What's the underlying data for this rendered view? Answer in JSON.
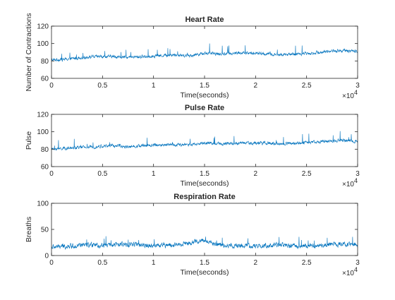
{
  "chart_data": [
    {
      "type": "line",
      "title": "Heart Rate",
      "xlabel": "Time(seconds)",
      "ylabel": "Number of Contractions",
      "xlim": [
        0,
        30000
      ],
      "ylim": [
        60,
        120
      ],
      "x_ticks": [
        "0",
        "0.5",
        "1",
        "1.5",
        "2",
        "2.5",
        "3"
      ],
      "y_ticks": [
        "60",
        "80",
        "100",
        "120"
      ],
      "x_multiplier": "10^4",
      "series": [
        {
          "color": "#0072BD",
          "x": [
            0,
            1500,
            3000,
            4500,
            6000,
            7500,
            9000,
            10500,
            12000,
            13500,
            15000,
            16500,
            18000,
            19500,
            21000,
            22500,
            24000,
            25500,
            27000,
            28500,
            30000
          ],
          "values": [
            81,
            82,
            84,
            85,
            85,
            84,
            85,
            86,
            87,
            86,
            89,
            88,
            89,
            89,
            88,
            87,
            88,
            89,
            91,
            92,
            91
          ]
        }
      ]
    },
    {
      "type": "line",
      "title": "Pulse Rate",
      "xlabel": "Time(seconds)",
      "ylabel": "Pulse",
      "xlim": [
        0,
        30000
      ],
      "ylim": [
        60,
        120
      ],
      "x_ticks": [
        "0",
        "0.5",
        "1",
        "1.5",
        "2",
        "2.5",
        "3"
      ],
      "y_ticks": [
        "60",
        "80",
        "100",
        "120"
      ],
      "x_multiplier": "10^4",
      "series": [
        {
          "color": "#0072BD",
          "x": [
            0,
            1500,
            3000,
            4500,
            6000,
            7500,
            9000,
            10500,
            12000,
            13500,
            15000,
            16500,
            18000,
            19500,
            21000,
            22500,
            24000,
            25500,
            27000,
            28500,
            30000
          ],
          "values": [
            80,
            81,
            82,
            83,
            84,
            83,
            84,
            85,
            85,
            85,
            87,
            86,
            87,
            87,
            87,
            86,
            87,
            88,
            89,
            90,
            89
          ]
        }
      ]
    },
    {
      "type": "line",
      "title": "Respiration Rate",
      "xlabel": "Time(seconds)",
      "ylabel": "Breaths",
      "xlim": [
        0,
        30000
      ],
      "ylim": [
        0,
        100
      ],
      "x_ticks": [
        "0",
        "0.5",
        "1",
        "1.5",
        "2",
        "2.5",
        "3"
      ],
      "y_ticks": [
        "0",
        "50",
        "100"
      ],
      "x_multiplier": "10^4",
      "series": [
        {
          "color": "#0072BD",
          "x": [
            0,
            1500,
            3000,
            4500,
            6000,
            7500,
            9000,
            10500,
            12000,
            13500,
            15000,
            16500,
            18000,
            19500,
            21000,
            22500,
            24000,
            25500,
            27000,
            28500,
            30000
          ],
          "values": [
            16,
            18,
            20,
            19,
            21,
            22,
            20,
            19,
            20,
            24,
            29,
            20,
            19,
            18,
            19,
            20,
            18,
            19,
            21,
            22,
            20
          ]
        }
      ]
    }
  ]
}
